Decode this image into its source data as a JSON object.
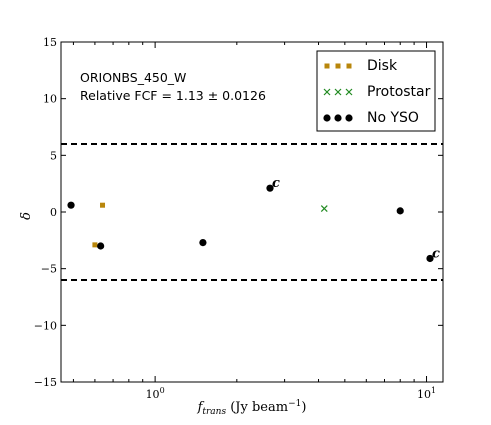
{
  "chart_data": {
    "type": "scatter",
    "x_scale": "log",
    "xlim": [
      0.45,
      11.5
    ],
    "ylim": [
      -15,
      15
    ],
    "xlabel_main": "f",
    "xlabel_sub": "trans",
    "xlabel_unit": " (Jy beam",
    "xlabel_exp": "−1",
    "xlabel_close": ")",
    "ylabel": "δ",
    "y_ticks": [
      {
        "value": 15,
        "label": "15"
      },
      {
        "value": 10,
        "label": "10"
      },
      {
        "value": 5,
        "label": "5"
      },
      {
        "value": 0,
        "label": "0"
      },
      {
        "value": -5,
        "label": "−5"
      },
      {
        "value": -10,
        "label": "−10"
      },
      {
        "value": -15,
        "label": "−15"
      }
    ],
    "x_ticks": [
      {
        "value": 1,
        "base": "10",
        "exp": "0"
      },
      {
        "value": 10,
        "base": "10",
        "exp": "1"
      }
    ],
    "x_minor_ticks": [
      0.5,
      0.6,
      0.7,
      0.8,
      0.9,
      2,
      3,
      4,
      5,
      6,
      7,
      8,
      9
    ],
    "reference_lines": [
      6,
      -6
    ],
    "annotation_title": "ORIONBS_450_W",
    "annotation_fcf": "Relative FCF = 1.13 ± 0.0126",
    "legend_position": "top-right",
    "series": [
      {
        "name": "Disk",
        "marker": "square",
        "color": "#b8860b",
        "points": [
          {
            "x": 0.64,
            "y": 0.6
          },
          {
            "x": 0.6,
            "y": -2.9
          }
        ]
      },
      {
        "name": "Protostar",
        "marker": "x",
        "color": "#228b22",
        "points": [
          {
            "x": 4.2,
            "y": 0.3
          }
        ]
      },
      {
        "name": "No YSO",
        "marker": "circle",
        "color": "#000000",
        "points": [
          {
            "x": 0.49,
            "y": 0.6
          },
          {
            "x": 0.63,
            "y": -3.0
          },
          {
            "x": 1.5,
            "y": -2.7
          },
          {
            "x": 2.65,
            "y": 2.1,
            "label": "c"
          },
          {
            "x": 8.0,
            "y": 0.1
          },
          {
            "x": 10.3,
            "y": -4.1,
            "label": "c"
          }
        ]
      }
    ]
  }
}
